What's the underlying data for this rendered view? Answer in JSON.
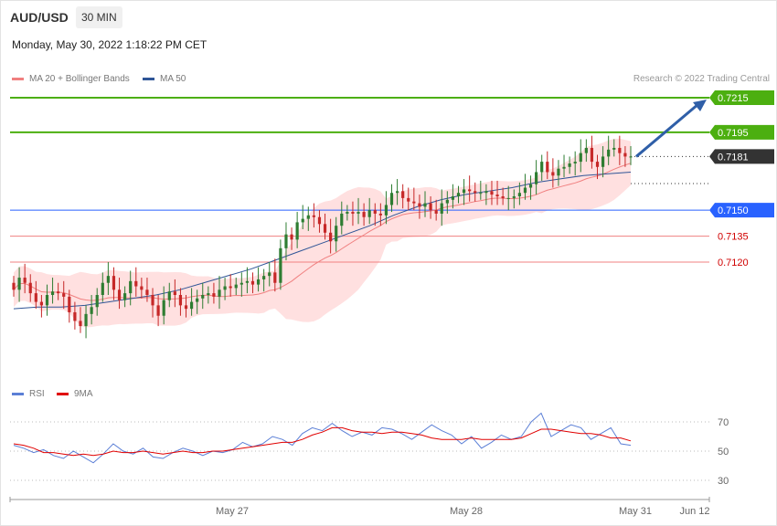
{
  "header": {
    "symbol": "AUD/USD",
    "timeframe": "30 MIN",
    "datetime": "Monday, May 30, 2022 1:18:22 PM CET",
    "credit": "Research © 2022 Trading Central"
  },
  "legend": {
    "main": [
      {
        "label": "MA 20 + Bollinger Bands",
        "color": "#f08080"
      },
      {
        "label": "MA 50",
        "color": "#2f5597"
      }
    ],
    "rsi": [
      {
        "label": "RSI",
        "color": "#5b7fd6"
      },
      {
        "label": "9MA",
        "color": "#e00000"
      }
    ]
  },
  "colors": {
    "up": "#2e7d32",
    "down": "#c62828",
    "resistance": "#4caf10",
    "support": "#2962ff",
    "support_minor": "#f08080",
    "current": "#333333",
    "arrow": "#2f5fa8",
    "band_fill": "#ffe0e0"
  },
  "chart_data": [
    {
      "type": "candlestick",
      "title": "AUD/USD",
      "timeframe": "30 MIN",
      "ylim": [
        0.7073,
        0.7217
      ],
      "x_ticks": [
        "May 27",
        "May 28",
        "May 31",
        "Jun 12"
      ],
      "levels": [
        {
          "label": "0.7215",
          "value": 0.7215,
          "kind": "resistance"
        },
        {
          "label": "0.7195",
          "value": 0.7195,
          "kind": "resistance"
        },
        {
          "label": "0.7181",
          "value": 0.7181,
          "kind": "current"
        },
        {
          "label": "0.7150",
          "value": 0.715,
          "kind": "support"
        },
        {
          "label": "0.7135",
          "value": 0.7135,
          "kind": "support_minor"
        },
        {
          "label": "0.7120",
          "value": 0.712,
          "kind": "support_minor"
        }
      ],
      "forecast_arrow": {
        "from": 0.7181,
        "to": 0.7215
      },
      "candles_close": [
        0.7104,
        0.7111,
        0.7108,
        0.7102,
        0.7097,
        0.7095,
        0.7101,
        0.7103,
        0.7102,
        0.71,
        0.7091,
        0.7086,
        0.7083,
        0.709,
        0.7094,
        0.7101,
        0.7108,
        0.7112,
        0.7104,
        0.7098,
        0.7102,
        0.7109,
        0.7106,
        0.7104,
        0.7101,
        0.7095,
        0.7089,
        0.7098,
        0.7103,
        0.7101,
        0.7095,
        0.7093,
        0.7097,
        0.7099,
        0.7101,
        0.7102,
        0.71,
        0.7104,
        0.7106,
        0.7105,
        0.7107,
        0.7108,
        0.7109,
        0.7107,
        0.711,
        0.7112,
        0.7114,
        0.7108,
        0.7128,
        0.7136,
        0.7133,
        0.7143,
        0.7145,
        0.7147,
        0.7146,
        0.7142,
        0.7137,
        0.7132,
        0.7141,
        0.7148,
        0.7149,
        0.7148,
        0.7149,
        0.7146,
        0.715,
        0.7148,
        0.7147,
        0.7153,
        0.716,
        0.7161,
        0.7157,
        0.7155,
        0.7154,
        0.7152,
        0.7154,
        0.715,
        0.7148,
        0.7154,
        0.7156,
        0.7158,
        0.716,
        0.7162,
        0.7161,
        0.716,
        0.716,
        0.7161,
        0.7159,
        0.7158,
        0.7157,
        0.7157,
        0.7158,
        0.716,
        0.7163,
        0.7165,
        0.7172,
        0.7178,
        0.7172,
        0.717,
        0.7174,
        0.7175,
        0.7177,
        0.7178,
        0.7183,
        0.7186,
        0.7178,
        0.7175,
        0.7181,
        0.7185,
        0.7186,
        0.7183,
        0.7181,
        0.7181
      ],
      "ma50": [
        0.7093,
        0.7094,
        0.7094,
        0.7095,
        0.7097,
        0.7099,
        0.7101,
        0.7104,
        0.7108,
        0.7112,
        0.7116,
        0.7121,
        0.7126,
        0.7131,
        0.7136,
        0.7141,
        0.7147,
        0.7152,
        0.7156,
        0.7159,
        0.7161,
        0.7163,
        0.7166,
        0.7168,
        0.717,
        0.7171,
        0.7172
      ]
    },
    {
      "type": "line",
      "title": "RSI",
      "ylim": [
        22,
        82
      ],
      "yticks": [
        30,
        50,
        70
      ],
      "series": [
        {
          "name": "RSI",
          "values": [
            54,
            52,
            49,
            51,
            47,
            45,
            50,
            46,
            42,
            48,
            55,
            50,
            48,
            52,
            46,
            45,
            49,
            52,
            50,
            47,
            50,
            49,
            51,
            56,
            53,
            55,
            60,
            58,
            54,
            62,
            66,
            64,
            69,
            64,
            60,
            63,
            61,
            66,
            65,
            62,
            58,
            63,
            68,
            64,
            61,
            55,
            60,
            52,
            56,
            61,
            58,
            60,
            70,
            76,
            60,
            64,
            68,
            66,
            58,
            62,
            66,
            55,
            54
          ]
        },
        {
          "name": "9MA",
          "values": [
            55,
            54,
            52,
            49,
            49,
            48,
            47,
            48,
            47,
            48,
            50,
            49,
            49,
            50,
            49,
            48,
            49,
            50,
            49,
            49,
            50,
            50,
            51,
            52,
            53,
            54,
            55,
            56,
            56,
            58,
            61,
            63,
            66,
            66,
            64,
            63,
            63,
            62,
            63,
            63,
            62,
            61,
            59,
            58,
            58,
            58,
            59,
            58,
            58,
            58,
            58,
            59,
            62,
            65,
            65,
            64,
            63,
            62,
            62,
            61,
            59,
            59,
            57
          ]
        }
      ]
    }
  ]
}
